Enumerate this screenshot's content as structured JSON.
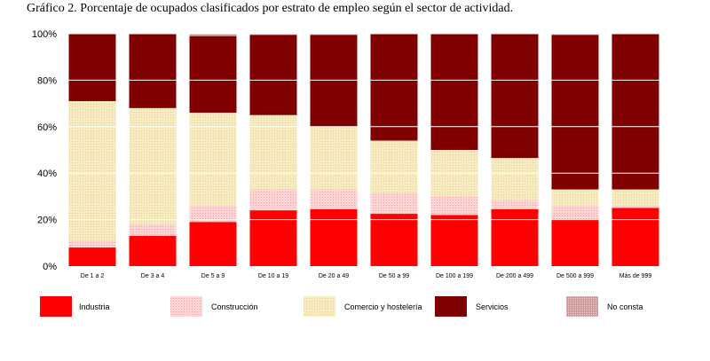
{
  "chart_data": {
    "type": "bar",
    "stacked": true,
    "title": "Gráfico 2. Porcentaje de ocupados clasificados por estrato de empleo según el sector de actividad.",
    "xlabel": "",
    "ylabel": "",
    "ylim": [
      0,
      100
    ],
    "yticks": [
      0,
      20,
      40,
      60,
      80,
      100
    ],
    "ytick_labels": [
      "0%",
      "20%",
      "40%",
      "60%",
      "80%",
      "100%"
    ],
    "grid": true,
    "legend_position": "bottom",
    "categories": [
      "De 1 a 2",
      "De 3 a 4",
      "De 5 a 9",
      "De 10 a 19",
      "De 20 a 49",
      "De 50 a 99",
      "De 100 a 199",
      "De 200 a 499",
      "De 500 a 999",
      "Más de 999"
    ],
    "series": [
      {
        "name": "Industria",
        "color": "#ff0000",
        "values": [
          8,
          13,
          19,
          24,
          24.5,
          22.5,
          22,
          24.5,
          20,
          25
        ]
      },
      {
        "name": "Construcción",
        "color": "#ffc8c8",
        "values": [
          3,
          5,
          7,
          9,
          8.5,
          9,
          8,
          4,
          6,
          1
        ]
      },
      {
        "name": "Comercio y hostelería",
        "color": "#f5e6b4",
        "values": [
          60,
          50,
          40,
          32,
          27,
          22.5,
          20,
          18,
          7,
          7
        ]
      },
      {
        "name": "Servicios",
        "color": "#800000",
        "values": [
          29,
          32,
          33,
          34.5,
          39.5,
          46,
          50,
          53.5,
          66.5,
          67
        ]
      },
      {
        "name": "No consta",
        "color": "#ff9999",
        "values": [
          0,
          0,
          1,
          0.5,
          0.5,
          0,
          0,
          0,
          0.5,
          0
        ]
      }
    ]
  }
}
